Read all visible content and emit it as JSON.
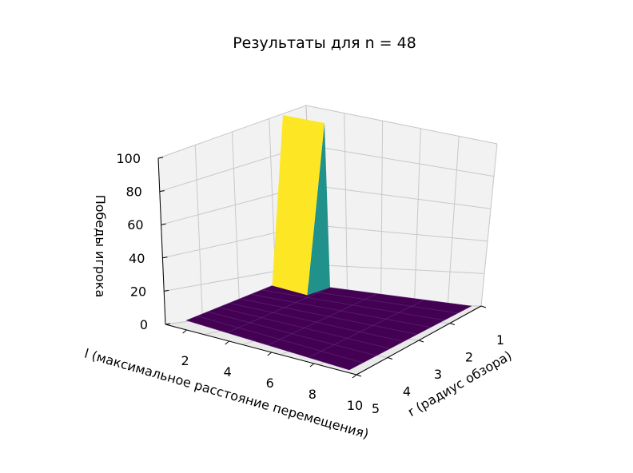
{
  "chart_data": {
    "type": "surface3d",
    "title": "Результаты для n = 48",
    "x_axis": {
      "label": "r (радиус обзора)",
      "ticks": [
        1,
        2,
        3,
        4,
        5
      ],
      "range": [
        1,
        5
      ]
    },
    "y_axis": {
      "label": "l (максимальное расстояние перемещения)",
      "ticks": [
        2,
        4,
        6,
        8,
        10
      ],
      "range": [
        1,
        10
      ]
    },
    "z_axis": {
      "label": "Победы игрока",
      "ticks": [
        0,
        20,
        40,
        60,
        80,
        100
      ],
      "range": [
        0,
        100
      ]
    },
    "grid": true,
    "colormap": "viridis",
    "surface_note_r_values": [
      1,
      2,
      3,
      4,
      5
    ],
    "surface_note_l_values": [
      1,
      2,
      3,
      4,
      5,
      6,
      7,
      8,
      9,
      10
    ],
    "peak": {
      "r": 1,
      "l": 1,
      "wins": 100
    },
    "other_values": 0
  }
}
